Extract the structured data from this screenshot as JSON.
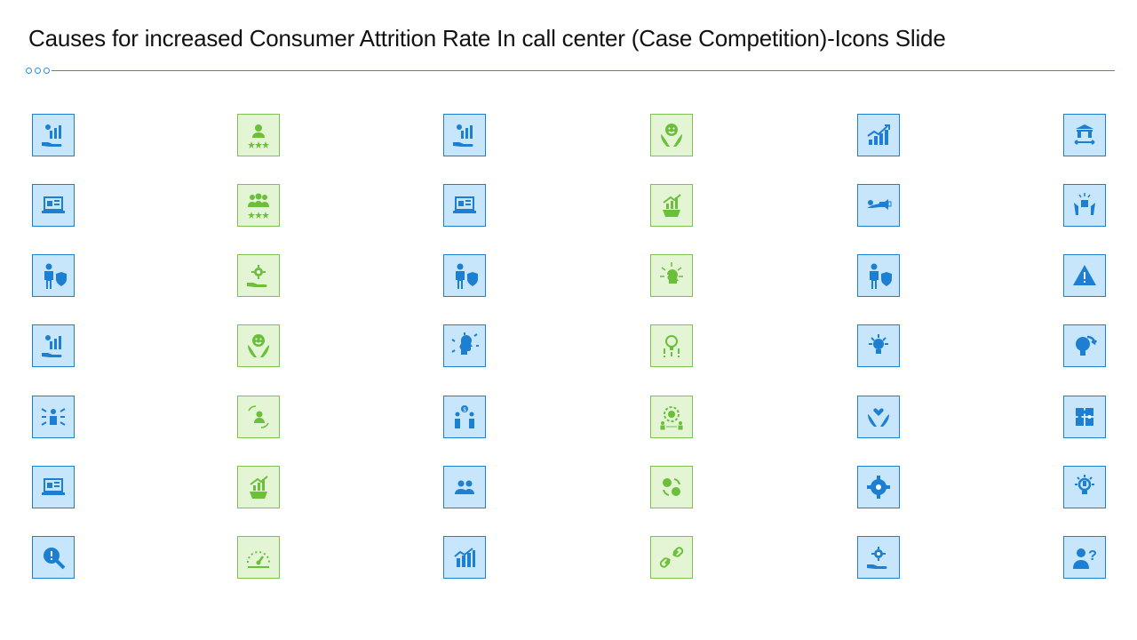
{
  "slide": {
    "title": "Causes for increased Consumer Attrition Rate In call center (Case Competition)-Icons Slide"
  },
  "colors": {
    "blue_fill": "#c7e6fb",
    "blue_border": "#1c7fd1",
    "blue_icon": "#1c7fd1",
    "green_fill": "#e3f5d5",
    "green_border": "#7cc24e",
    "green_icon": "#6cbf3a",
    "accent_line": "#2b8fd6"
  },
  "icon_grid": {
    "columns": [
      {
        "theme": "blue",
        "icons": [
          "hand-growth-chart-icon",
          "laptop-analytics-icon",
          "businessman-shield-icon",
          "hand-growth-chart-icon",
          "team-leader-arrows-icon",
          "laptop-analytics-icon",
          "search-alert-icon"
        ]
      },
      {
        "theme": "green",
        "icons": [
          "person-rating-stars-icon",
          "team-rating-stars-icon",
          "hand-gear-icon",
          "smiley-hands-icon",
          "person-exchange-icon",
          "gear-growth-chart-icon",
          "speedometer-icon"
        ]
      },
      {
        "theme": "blue",
        "icons": [
          "hand-growth-chart-icon",
          "laptop-analytics-icon",
          "businessman-shield-icon",
          "head-arrows-icon",
          "dollar-people-icon",
          "team-icon",
          "bar-chart-trend-icon"
        ]
      },
      {
        "theme": "green",
        "icons": [
          "smiley-hands-icon",
          "gear-growth-chart-icon",
          "head-ideas-icon",
          "bulb-alert-icon",
          "gear-people-icon",
          "coin-exchange-icon",
          "broken-link-icon"
        ]
      },
      {
        "theme": "blue",
        "icons": [
          "growth-chart-icon",
          "megaphone-icon",
          "businessman-shield-icon",
          "lightbulb-icon",
          "heart-hands-icon",
          "gear-network-icon",
          "hand-gear-icon"
        ]
      },
      {
        "theme": "blue",
        "icons": [
          "bank-arrows-icon",
          "hands-puzzle-icon",
          "warning-icon",
          "bulb-arrow-icon",
          "puzzle-icon",
          "lightbulb-idea-icon",
          "person-question-icon"
        ]
      }
    ]
  }
}
